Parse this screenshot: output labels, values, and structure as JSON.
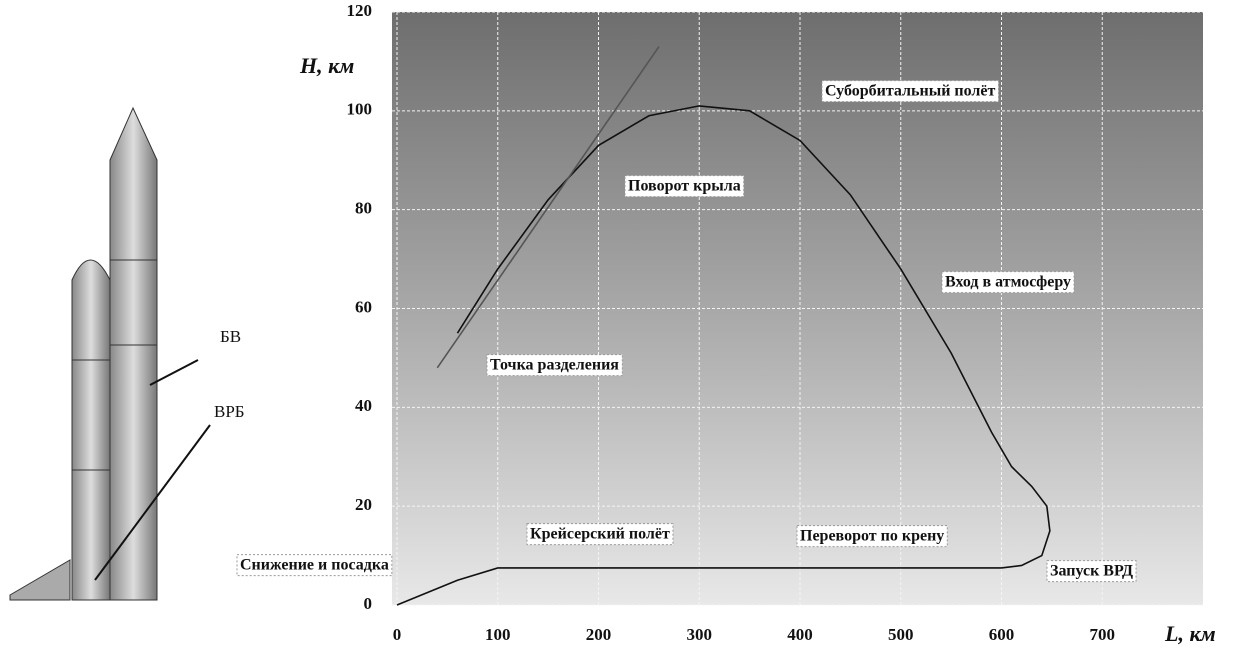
{
  "chart_data": {
    "type": "line",
    "xlabel": "L, км",
    "ylabel": "H, км",
    "xlim": [
      0,
      800
    ],
    "ylim": [
      0,
      120
    ],
    "xticks": [
      0,
      100,
      200,
      300,
      400,
      500,
      600,
      700
    ],
    "yticks": [
      0,
      20,
      40,
      60,
      80,
      100,
      120
    ],
    "grid": true,
    "series": [
      {
        "color": "#111111",
        "x": [
          60,
          100,
          150,
          200,
          250,
          300,
          350,
          400,
          450,
          500,
          550,
          590,
          610,
          630,
          645,
          648,
          640,
          620,
          600,
          500,
          300,
          100,
          60,
          30,
          0
        ],
        "y": [
          55,
          68,
          82,
          93,
          99,
          101,
          100,
          94,
          83,
          68,
          51,
          35,
          28,
          24,
          20,
          15,
          10,
          8,
          7.5,
          7.5,
          7.5,
          7.5,
          5,
          2.5,
          0
        ]
      },
      {
        "color": "#555555",
        "x": [
          40,
          260
        ],
        "y": [
          48,
          113
        ]
      }
    ],
    "annotations": [
      "Суборбитальный полёт",
      "Поворот крыла",
      "Вход в атмосферу",
      "Точка разделения",
      "Крейсерский полёт",
      "Переворот по крену",
      "Снижение и посадка",
      "Запуск ВРД"
    ],
    "rocket_labels": [
      "БВ",
      "ВРБ"
    ]
  }
}
